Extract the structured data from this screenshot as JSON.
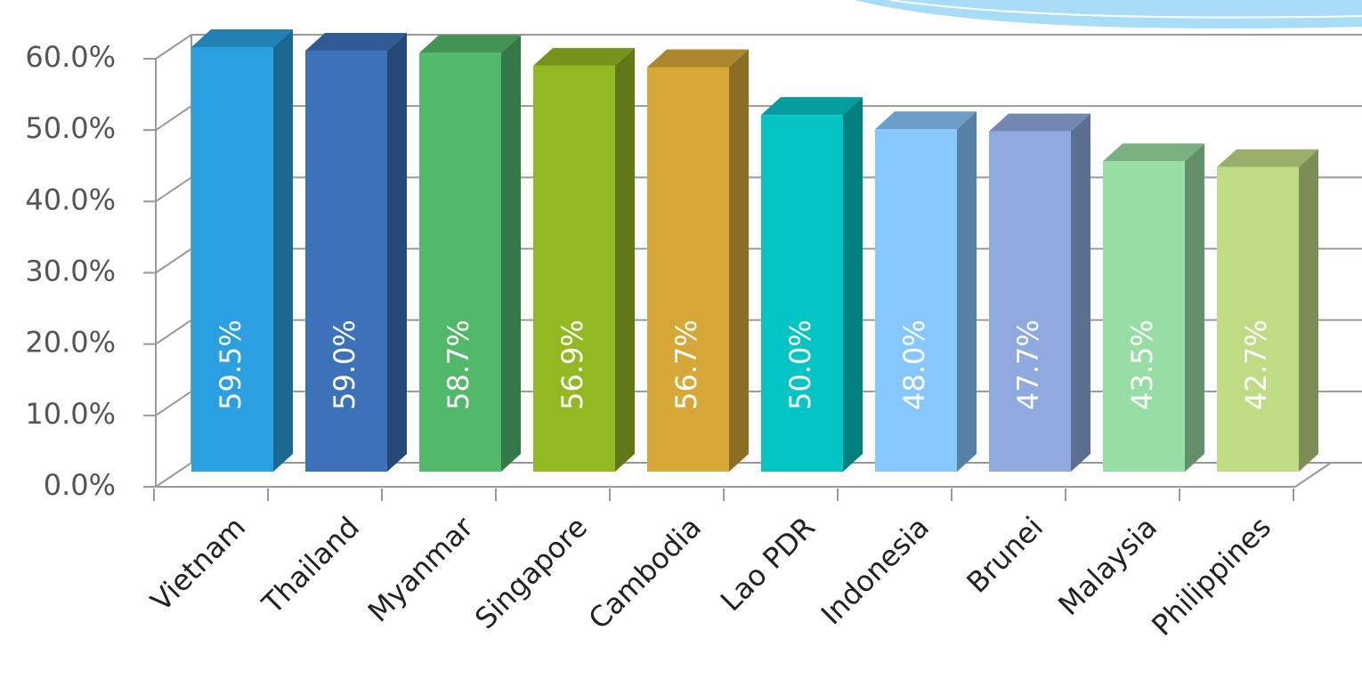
{
  "chart_data": {
    "type": "bar3d",
    "categories": [
      "Vietnam",
      "Thailand",
      "Myanmar",
      "Singapore",
      "Cambodia",
      "Lao PDR",
      "Indonesia",
      "Brunei",
      "Malaysia",
      "Philippines"
    ],
    "values": [
      59.5,
      59.0,
      58.7,
      56.9,
      56.7,
      50.0,
      48.0,
      47.7,
      43.5,
      42.7
    ],
    "value_labels": [
      "59.5%",
      "59.0%",
      "58.7%",
      "56.9%",
      "56.7%",
      "50.0%",
      "48.0%",
      "47.7%",
      "43.5%",
      "42.7%"
    ],
    "colors": [
      "#2aa0e0",
      "#3b72b9",
      "#52b96a",
      "#93b922",
      "#d6a838",
      "#05c4c4",
      "#86c7fd",
      "#8faadf",
      "#98dda3",
      "#bfdb84"
    ],
    "ylim": [
      0,
      60
    ],
    "yticks": [
      {
        "value": 0,
        "label": "0.0%"
      },
      {
        "value": 10,
        "label": "10.0%"
      },
      {
        "value": 20,
        "label": "20.0%"
      },
      {
        "value": 30,
        "label": "30.0%"
      },
      {
        "value": 40,
        "label": "40.0%"
      },
      {
        "value": 50,
        "label": "50.0%"
      },
      {
        "value": 60,
        "label": "60.0%"
      }
    ],
    "grid": true
  }
}
